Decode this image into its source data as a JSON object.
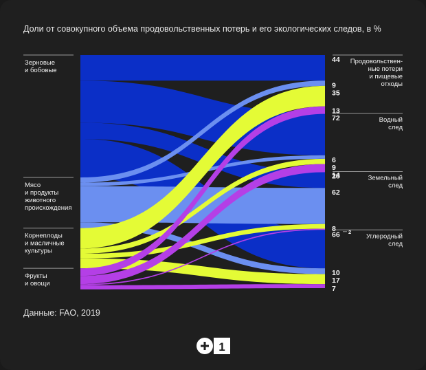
{
  "title": "Доли от совокупного объема продовольственных потерь и его экологических следов, в %",
  "source": "Данные: FAO, 2019",
  "colors": {
    "background": "#1f1f1f",
    "grains": "#0b2fc7",
    "meat": "#6b8ff0",
    "roots": "#e4fb36",
    "fruits": "#b43fe6",
    "divider": "#9a9a9a"
  },
  "chart_data": {
    "type": "sankey",
    "title": "Доли от совокупного объема продовольственных потерь и его экологических следов, в %",
    "sources": [
      {
        "id": "grains",
        "label_lines": [
          "Зерновые",
          "и бобовые"
        ]
      },
      {
        "id": "meat",
        "label_lines": [
          "Мясо",
          "и продукты",
          "животного",
          "происхождения"
        ]
      },
      {
        "id": "roots",
        "label_lines": [
          "Корнеплоды",
          "и масличные",
          "культуры"
        ]
      },
      {
        "id": "fruits",
        "label_lines": [
          "Фрукты",
          "и овощи"
        ]
      }
    ],
    "targets": [
      {
        "id": "loss",
        "label_lines": [
          "Продовольствен-",
          "ные потери",
          "и пищевые",
          "отходы"
        ]
      },
      {
        "id": "water",
        "label_lines": [
          "Водный",
          "след"
        ]
      },
      {
        "id": "land",
        "label_lines": [
          "Земельный",
          "след"
        ]
      },
      {
        "id": "carbon",
        "label_lines": [
          "Углеродный",
          "след"
        ]
      }
    ],
    "values": {
      "loss": {
        "grains": 44,
        "meat": 9,
        "roots": 35,
        "fruits": 13
      },
      "water": {
        "grains": 72,
        "meat": 6,
        "roots": 9,
        "fruits": 14
      },
      "land": {
        "grains": 28,
        "meat": 62,
        "roots": 8,
        "fruits": 2
      },
      "carbon": {
        "grains": 66,
        "meat": 10,
        "roots": 17,
        "fruits": 7
      }
    }
  },
  "logo": {
    "text": "1"
  }
}
